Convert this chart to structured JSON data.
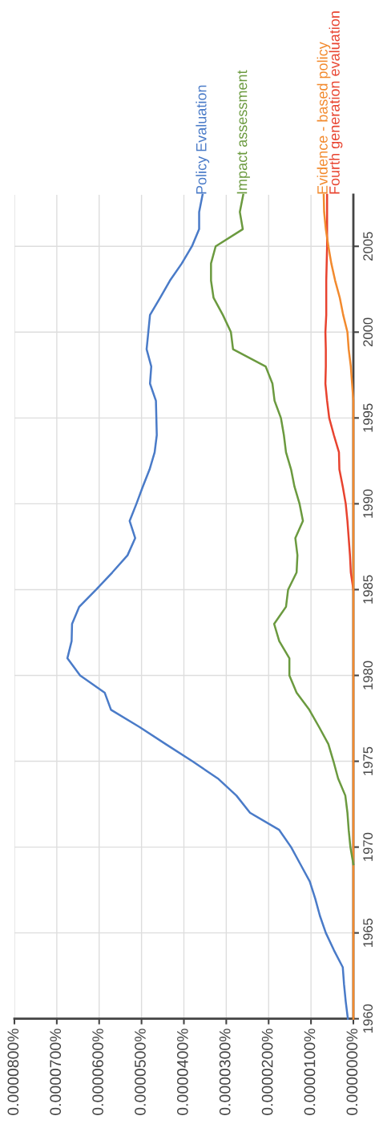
{
  "chart_data": {
    "type": "line",
    "orientation": "horizontal",
    "x": [
      1960,
      1961,
      1962,
      1963,
      1964,
      1965,
      1966,
      1967,
      1968,
      1969,
      1970,
      1971,
      1972,
      1973,
      1974,
      1975,
      1976,
      1977,
      1978,
      1979,
      1980,
      1981,
      1982,
      1983,
      1984,
      1985,
      1986,
      1987,
      1988,
      1989,
      1990,
      1991,
      1992,
      1993,
      1994,
      1995,
      1996,
      1997,
      1998,
      1999,
      2000,
      2001,
      2002,
      2003,
      2004,
      2005,
      2006,
      2007,
      2008
    ],
    "series": [
      {
        "name": "Policy Evaluation",
        "color": "#4a7bc8",
        "values": [
          1.3e-06,
          1.8e-06,
          2.2e-06,
          2.5e-06,
          4.6e-06,
          6.5e-06,
          7.9e-06,
          9e-06,
          1.03e-05,
          1.25e-05,
          1.47e-05,
          1.75e-05,
          2.44e-05,
          2.76e-05,
          3.2e-05,
          3.8e-05,
          4.43e-05,
          5.05e-05,
          5.72e-05,
          5.87e-05,
          6.45e-05,
          6.75e-05,
          6.65e-05,
          6.64e-05,
          6.47e-05,
          6.07e-05,
          5.69e-05,
          5.33e-05,
          5.15e-05,
          5.28e-05,
          5.12e-05,
          4.97e-05,
          4.81e-05,
          4.69e-05,
          4.64e-05,
          4.65e-05,
          4.66e-05,
          4.8e-05,
          4.77e-05,
          4.88e-05,
          4.84e-05,
          4.8e-05,
          4.56e-05,
          4.33e-05,
          4.05e-05,
          3.81e-05,
          3.64e-05,
          3.64e-05,
          3.56e-05
        ]
      },
      {
        "name": "Impact assessment",
        "color": "#6b9a3f",
        "values": [
          null,
          null,
          null,
          null,
          null,
          null,
          null,
          null,
          null,
          0,
          7e-07,
          1.1e-06,
          1.4e-06,
          1.9e-06,
          3.6e-06,
          4.7e-06,
          5.9e-06,
          8.1e-06,
          1.04e-05,
          1.34e-05,
          1.51e-05,
          1.51e-05,
          1.75e-05,
          1.87e-05,
          1.59e-05,
          1.54e-05,
          1.34e-05,
          1.32e-05,
          1.37e-05,
          1.19e-05,
          1.27e-05,
          1.39e-05,
          1.47e-05,
          1.59e-05,
          1.64e-05,
          1.71e-05,
          1.86e-05,
          1.91e-05,
          2.07e-05,
          2.84e-05,
          2.89e-05,
          3.08e-05,
          3.3e-05,
          3.36e-05,
          3.36e-05,
          3.25e-05,
          2.61e-05,
          2.68e-05,
          2.6e-05
        ]
      },
      {
        "name": "Evidence - based policy",
        "color": "#f28a2e",
        "values": [
          0,
          0,
          0,
          0,
          0,
          0,
          0,
          0,
          0,
          0,
          0,
          0,
          0,
          0,
          0,
          0,
          0,
          0,
          0,
          0,
          0,
          0,
          0,
          0,
          0,
          0,
          0,
          0,
          0,
          0,
          0,
          0,
          0,
          0,
          0,
          0,
          0,
          3e-07,
          6e-07,
          1.1e-06,
          1.4e-06,
          2.4e-06,
          3.2e-06,
          4.3e-06,
          5.2e-06,
          5.9e-06,
          6.5e-06,
          6.9e-06,
          7e-06
        ]
      },
      {
        "name": "Fourth generation evaluation",
        "color": "#e8432f",
        "values": [
          null,
          null,
          null,
          null,
          null,
          null,
          null,
          null,
          null,
          null,
          null,
          null,
          null,
          null,
          null,
          null,
          null,
          null,
          null,
          null,
          null,
          null,
          null,
          null,
          null,
          0,
          6e-07,
          8e-07,
          1.1e-06,
          1.4e-06,
          1.8e-06,
          2.5e-06,
          3.3e-06,
          3.4e-06,
          4.6e-06,
          5.7e-06,
          6.2e-06,
          6.6e-06,
          6.5e-06,
          6.5e-06,
          6.6e-06,
          6.4e-06,
          6.4e-06,
          6.4e-06,
          6.3e-06,
          6.2e-06,
          6.2e-06,
          6.2e-06,
          6.2e-06
        ]
      }
    ],
    "xlim": [
      8e-05,
      0
    ],
    "xticks": [
      {
        "value": 8e-05,
        "label": "0.0000800%"
      },
      {
        "value": 7e-05,
        "label": "0.0000700%"
      },
      {
        "value": 6e-05,
        "label": "0.0000600%"
      },
      {
        "value": 5e-05,
        "label": "0.0000500%"
      },
      {
        "value": 4e-05,
        "label": "0.0000400%"
      },
      {
        "value": 3e-05,
        "label": "0.0000300%"
      },
      {
        "value": 2e-05,
        "label": "0.0000200%"
      },
      {
        "value": 1e-05,
        "label": "0.0000100%"
      },
      {
        "value": 0,
        "label": "0.0000000%"
      }
    ],
    "ylim": [
      1960,
      2008
    ],
    "yticks": [
      1960,
      1965,
      1970,
      1975,
      1980,
      1985,
      1990,
      1995,
      2000,
      2005
    ],
    "grid": true,
    "legend": false,
    "marker": "none",
    "line_style": "solid"
  }
}
